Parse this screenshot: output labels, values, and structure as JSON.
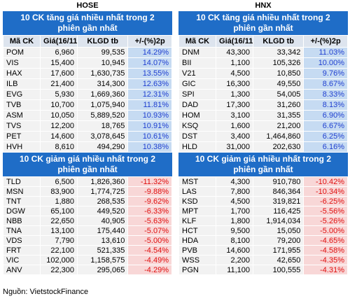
{
  "panels": [
    {
      "exchange": "HOSE",
      "gainers": {
        "title": "10 CK tăng giá nhiều nhất trong 2 phiên gần nhất",
        "columns": [
          "Mã CK",
          "Giá(16/11)",
          "KLGD tb",
          "+/-(%)2p"
        ],
        "rows": [
          [
            "POM",
            "6,960",
            "99,535",
            "14.29%"
          ],
          [
            "VIS",
            "15,400",
            "10,945",
            "14.07%"
          ],
          [
            "HAX",
            "17,600",
            "1,630,735",
            "13.55%"
          ],
          [
            "ILB",
            "21,400",
            "314,300",
            "12.63%"
          ],
          [
            "EVG",
            "5,930",
            "1,669,360",
            "12.31%"
          ],
          [
            "TVB",
            "10,700",
            "1,075,940",
            "11.81%"
          ],
          [
            "ASM",
            "10,050",
            "5,889,520",
            "10.93%"
          ],
          [
            "TVS",
            "12,200",
            "18,765",
            "10.91%"
          ],
          [
            "PET",
            "14,600",
            "3,078,645",
            "10.61%"
          ],
          [
            "HVH",
            "8,610",
            "494,290",
            "10.38%"
          ]
        ]
      },
      "losers": {
        "title": "10 CK giảm giá nhiều nhất trong 2 phiên gần nhất",
        "rows": [
          [
            "TLD",
            "6,500",
            "1,826,360",
            "-11.32%"
          ],
          [
            "MSN",
            "83,900",
            "1,774,725",
            "-9.88%"
          ],
          [
            "TNT",
            "1,880",
            "268,535",
            "-9.62%"
          ],
          [
            "DGW",
            "65,100",
            "449,520",
            "-6.33%"
          ],
          [
            "NBB",
            "22,650",
            "40,905",
            "-5.63%"
          ],
          [
            "TNA",
            "13,100",
            "175,440",
            "-5.07%"
          ],
          [
            "VDS",
            "7,790",
            "13,610",
            "-5.00%"
          ],
          [
            "FRT",
            "22,100",
            "521,335",
            "-4.54%"
          ],
          [
            "VIC",
            "102,000",
            "1,158,575",
            "-4.49%"
          ],
          [
            "ANV",
            "22,300",
            "295,065",
            "-4.29%"
          ]
        ]
      }
    },
    {
      "exchange": "HNX",
      "gainers": {
        "title": "10 CK tăng giá nhiều nhất trong 2 phiên gần nhất",
        "columns": [
          "Mã CK",
          "Giá(16/11)",
          "KLGD tb",
          "+/-(%)2p"
        ],
        "rows": [
          [
            "DNM",
            "43,300",
            "33,342",
            "11.03%"
          ],
          [
            "BII",
            "1,100",
            "105,326",
            "10.00%"
          ],
          [
            "V21",
            "4,500",
            "10,850",
            "9.76%"
          ],
          [
            "GIC",
            "16,300",
            "49,550",
            "8.67%"
          ],
          [
            "SPI",
            "1,300",
            "54,005",
            "8.33%"
          ],
          [
            "DAD",
            "17,300",
            "31,260",
            "8.13%"
          ],
          [
            "HOM",
            "3,100",
            "31,355",
            "6.90%"
          ],
          [
            "KSQ",
            "1,600",
            "21,200",
            "6.67%"
          ],
          [
            "DST",
            "3,400",
            "1,464,860",
            "6.25%"
          ],
          [
            "HLD",
            "31,000",
            "202,630",
            "6.16%"
          ]
        ]
      },
      "losers": {
        "title": "10 CK giảm giá nhiều nhất trong 2 phiên gần nhất",
        "rows": [
          [
            "MST",
            "4,300",
            "910,780",
            "-10.42%"
          ],
          [
            "LAS",
            "7,800",
            "846,364",
            "-10.34%"
          ],
          [
            "KSD",
            "4,500",
            "319,821",
            "-6.25%"
          ],
          [
            "MPT",
            "1,700",
            "116,425",
            "-5.56%"
          ],
          [
            "KLF",
            "1,800",
            "1,914,034",
            "-5.26%"
          ],
          [
            "HCT",
            "9,500",
            "15,050",
            "-5.00%"
          ],
          [
            "HDA",
            "8,100",
            "79,200",
            "-4.65%"
          ],
          [
            "PVB",
            "14,600",
            "171,955",
            "-4.58%"
          ],
          [
            "WSS",
            "2,200",
            "42,650",
            "-4.35%"
          ],
          [
            "PGN",
            "11,100",
            "100,555",
            "-4.31%"
          ]
        ]
      }
    }
  ],
  "source": "Nguồn: VietstockFinance"
}
